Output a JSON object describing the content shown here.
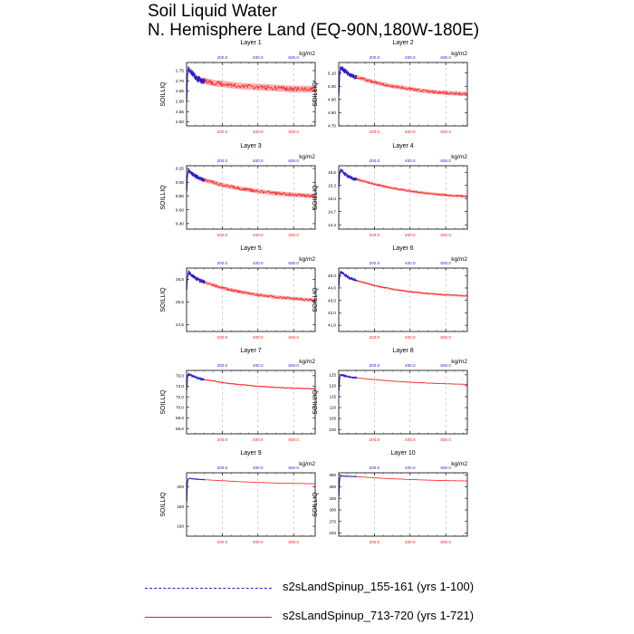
{
  "title": {
    "line1": "Soil Liquid Water",
    "line2": "N. Hemisphere Land (EQ-90N,180W-180E)"
  },
  "colors": {
    "run1": "#1f1fd6",
    "run2": "#ff1a1a",
    "bottom_ticks": "#ff1a1a",
    "top_ticks": "#1f1fd6",
    "grid": "#b4b4b4"
  },
  "legend": [
    {
      "label": "s2sLandSpinup_155-161 (yrs 1-100)",
      "style": "dashed",
      "color": "#1f1fd6"
    },
    {
      "label": "s2sLandSpinup_713-720 (yrs 1-721)",
      "style": "solid",
      "color": "#ff1a1a"
    }
  ],
  "chart_data": [
    {
      "type": "line",
      "title": "Layer 1",
      "ylabel": "SOILLIQ",
      "units": "kg/m2",
      "yticks": [
        "2.50",
        "2.55",
        "2.60",
        "2.65",
        "2.70",
        "2.75"
      ],
      "ylim": [
        2.48,
        2.79
      ],
      "x_top_ticks": [
        "200.0",
        "400.0",
        "600.0"
      ],
      "x_bottom_ticks": [
        "200.0",
        "400.0",
        "600.0"
      ],
      "xlim": [
        0,
        721
      ],
      "series": [
        {
          "name": "s2sLandSpinup_155-161 (yrs 1-100)",
          "x": [
            1,
            5,
            10,
            20,
            30,
            40,
            50,
            60,
            70,
            80,
            90,
            100
          ],
          "y": [
            2.62,
            2.73,
            2.76,
            2.75,
            2.74,
            2.73,
            2.72,
            2.71,
            2.71,
            2.7,
            2.7,
            2.7
          ],
          "noise": 0.015
        },
        {
          "name": "s2sLandSpinup_713-720 (yrs 1-721)",
          "x": [
            1,
            5,
            10,
            20,
            30,
            40,
            50,
            60,
            70,
            80,
            90,
            100,
            150,
            200,
            300,
            400,
            500,
            600,
            721
          ],
          "y": [
            2.62,
            2.73,
            2.76,
            2.75,
            2.74,
            2.73,
            2.72,
            2.71,
            2.71,
            2.7,
            2.7,
            2.7,
            2.69,
            2.685,
            2.675,
            2.67,
            2.665,
            2.66,
            2.66
          ],
          "noise": 0.01
        }
      ]
    },
    {
      "type": "line",
      "title": "Layer 2",
      "ylabel": "SOILLIQ",
      "units": "kg/m2",
      "yticks": [
        "4.70",
        "4.80",
        "4.90",
        "5.00",
        "5.10"
      ],
      "ylim": [
        4.7,
        5.18
      ],
      "x_top_ticks": [
        "200.0",
        "400.0",
        "600.0"
      ],
      "x_bottom_ticks": [
        "200.0",
        "400.0",
        "600.0"
      ],
      "xlim": [
        0,
        721
      ],
      "series": [
        {
          "name": "s2sLandSpinup_155-161 (yrs 1-100)",
          "x": [
            1,
            5,
            10,
            20,
            30,
            40,
            50,
            60,
            70,
            80,
            90,
            100
          ],
          "y": [
            4.95,
            5.09,
            5.14,
            5.13,
            5.12,
            5.11,
            5.1,
            5.09,
            5.08,
            5.08,
            5.07,
            5.07
          ],
          "noise": 0.02
        },
        {
          "name": "s2sLandSpinup_713-720 (yrs 1-721)",
          "x": [
            1,
            5,
            10,
            20,
            30,
            40,
            50,
            60,
            70,
            80,
            90,
            100,
            150,
            200,
            300,
            400,
            500,
            600,
            721
          ],
          "y": [
            4.95,
            5.09,
            5.14,
            5.13,
            5.12,
            5.11,
            5.1,
            5.09,
            5.08,
            5.08,
            5.07,
            5.07,
            5.05,
            5.03,
            5.0,
            4.98,
            4.96,
            4.95,
            4.94
          ],
          "noise": 0.01
        }
      ]
    },
    {
      "type": "line",
      "title": "Layer 3",
      "ylabel": "SOILLIQ",
      "units": "kg/m2",
      "yticks": [
        "8.40",
        "8.60",
        "8.80",
        "9.00",
        "9.20"
      ],
      "ylim": [
        8.32,
        9.24
      ],
      "x_top_ticks": [
        "200.0",
        "400.0",
        "600.0"
      ],
      "x_bottom_ticks": [
        "200.0",
        "400.0",
        "600.0"
      ],
      "xlim": [
        0,
        721
      ],
      "series": [
        {
          "name": "s2sLandSpinup_155-161 (yrs 1-100)",
          "x": [
            1,
            5,
            10,
            20,
            30,
            40,
            50,
            60,
            70,
            80,
            90,
            100
          ],
          "y": [
            8.9,
            9.1,
            9.17,
            9.15,
            9.13,
            9.11,
            9.09,
            9.08,
            9.06,
            9.05,
            9.04,
            9.03
          ],
          "noise": 0.03
        },
        {
          "name": "s2sLandSpinup_713-720 (yrs 1-721)",
          "x": [
            1,
            5,
            10,
            20,
            30,
            40,
            50,
            60,
            70,
            80,
            90,
            100,
            150,
            200,
            300,
            400,
            500,
            600,
            721
          ],
          "y": [
            8.9,
            9.1,
            9.17,
            9.15,
            9.13,
            9.11,
            9.09,
            9.08,
            9.06,
            9.05,
            9.04,
            9.03,
            9.0,
            8.96,
            8.91,
            8.87,
            8.84,
            8.82,
            8.8
          ],
          "noise": 0.02
        }
      ]
    },
    {
      "type": "line",
      "title": "Layer 4",
      "ylabel": "SOILLIQ",
      "units": "kg/m2",
      "yticks": [
        "14.4",
        "14.7",
        "15.0",
        "15.3",
        "15.6"
      ],
      "ylim": [
        14.3,
        15.75
      ],
      "x_top_ticks": [
        "200.0",
        "400.0",
        "600.0"
      ],
      "x_bottom_ticks": [
        "200.0",
        "400.0",
        "600.0"
      ],
      "xlim": [
        0,
        721
      ],
      "series": [
        {
          "name": "s2sLandSpinup_155-161 (yrs 1-100)",
          "x": [
            1,
            5,
            10,
            20,
            30,
            40,
            50,
            60,
            70,
            80,
            90,
            100
          ],
          "y": [
            15.3,
            15.55,
            15.65,
            15.62,
            15.58,
            15.55,
            15.52,
            15.5,
            15.48,
            15.46,
            15.45,
            15.44
          ],
          "noise": 0.04
        },
        {
          "name": "s2sLandSpinup_713-720 (yrs 1-721)",
          "x": [
            1,
            5,
            10,
            20,
            30,
            40,
            50,
            60,
            70,
            80,
            90,
            100,
            150,
            200,
            300,
            400,
            500,
            600,
            721
          ],
          "y": [
            15.3,
            15.55,
            15.65,
            15.62,
            15.58,
            15.55,
            15.52,
            15.5,
            15.48,
            15.46,
            15.45,
            15.44,
            15.39,
            15.33,
            15.24,
            15.17,
            15.12,
            15.08,
            15.05
          ],
          "noise": 0.02
        }
      ]
    },
    {
      "type": "line",
      "title": "Layer 5",
      "ylabel": "SOILLIQ",
      "units": "kg/m2",
      "yticks": [
        "24.5",
        "25.5",
        "26.5"
      ],
      "ylim": [
        24.2,
        27.0
      ],
      "x_top_ticks": [
        "200.0",
        "400.0",
        "600.0"
      ],
      "x_bottom_ticks": [
        "200.0",
        "400.0",
        "600.0"
      ],
      "xlim": [
        0,
        721
      ],
      "series": [
        {
          "name": "s2sLandSpinup_155-161 (yrs 1-100)",
          "x": [
            1,
            5,
            10,
            20,
            30,
            40,
            50,
            60,
            70,
            80,
            90,
            100
          ],
          "y": [
            26.1,
            26.6,
            26.8,
            26.75,
            26.68,
            26.62,
            26.56,
            26.52,
            26.48,
            26.44,
            26.41,
            26.38
          ],
          "noise": 0.08
        },
        {
          "name": "s2sLandSpinup_713-720 (yrs 1-721)",
          "x": [
            1,
            5,
            10,
            20,
            30,
            40,
            50,
            60,
            70,
            80,
            90,
            100,
            150,
            200,
            300,
            400,
            500,
            600,
            721
          ],
          "y": [
            26.1,
            26.6,
            26.8,
            26.75,
            26.68,
            26.62,
            26.56,
            26.52,
            26.48,
            26.44,
            26.41,
            26.38,
            26.25,
            26.12,
            25.95,
            25.82,
            25.72,
            25.65,
            25.58
          ],
          "noise": 0.05
        }
      ]
    },
    {
      "type": "line",
      "title": "Layer 6",
      "ylabel": "SOILLIQ",
      "units": "kg/m2",
      "yticks": [
        "41.0",
        "42.0",
        "43.0",
        "44.0",
        "45.0"
      ],
      "ylim": [
        40.5,
        45.6
      ],
      "x_top_ticks": [
        "200.0",
        "400.0",
        "600.0"
      ],
      "x_bottom_ticks": [
        "200.0",
        "400.0",
        "600.0"
      ],
      "xlim": [
        0,
        721
      ],
      "series": [
        {
          "name": "s2sLandSpinup_155-161 (yrs 1-100)",
          "x": [
            1,
            5,
            10,
            20,
            30,
            40,
            50,
            60,
            70,
            80,
            90,
            100
          ],
          "y": [
            44.2,
            45.0,
            45.3,
            45.2,
            45.1,
            45.0,
            44.9,
            44.8,
            44.75,
            44.7,
            44.65,
            44.6
          ],
          "noise": 0.1
        },
        {
          "name": "s2sLandSpinup_713-720 (yrs 1-721)",
          "x": [
            1,
            5,
            10,
            20,
            30,
            40,
            50,
            60,
            70,
            80,
            90,
            100,
            150,
            200,
            300,
            400,
            500,
            600,
            721
          ],
          "y": [
            44.2,
            45.0,
            45.3,
            45.2,
            45.1,
            45.0,
            44.9,
            44.8,
            44.75,
            44.7,
            44.65,
            44.6,
            44.4,
            44.2,
            43.9,
            43.7,
            43.55,
            43.45,
            43.35
          ],
          "noise": 0.05
        }
      ]
    },
    {
      "type": "line",
      "title": "Layer 7",
      "ylabel": "SOILLIQ",
      "units": "kg/m2",
      "yticks": [
        "66.0",
        "68.0",
        "70.0",
        "72.0",
        "74.0",
        "76.0"
      ],
      "ylim": [
        65.0,
        77.0
      ],
      "x_top_ticks": [
        "200.0",
        "400.0",
        "600.0"
      ],
      "x_bottom_ticks": [
        "200.0",
        "400.0",
        "600.0"
      ],
      "xlim": [
        0,
        721
      ],
      "series": [
        {
          "name": "s2sLandSpinup_155-161 (yrs 1-100)",
          "x": [
            1,
            5,
            10,
            20,
            30,
            40,
            50,
            60,
            70,
            80,
            90,
            100
          ],
          "y": [
            73.5,
            75.6,
            76.3,
            76.2,
            76.0,
            75.85,
            75.7,
            75.6,
            75.5,
            75.4,
            75.3,
            75.25
          ],
          "noise": 0.15
        },
        {
          "name": "s2sLandSpinup_713-720 (yrs 1-721)",
          "x": [
            1,
            5,
            10,
            20,
            30,
            40,
            50,
            60,
            70,
            80,
            90,
            100,
            150,
            200,
            300,
            400,
            500,
            600,
            721
          ],
          "y": [
            73.5,
            75.6,
            76.3,
            76.2,
            76.0,
            75.85,
            75.7,
            75.6,
            75.5,
            75.4,
            75.3,
            75.25,
            75.0,
            74.7,
            74.3,
            74.0,
            73.8,
            73.65,
            73.5
          ],
          "noise": 0.08
        }
      ]
    },
    {
      "type": "line",
      "title": "Layer 8",
      "ylabel": "SOILLIQ",
      "units": "kg/m2",
      "yticks": [
        "100",
        "105",
        "110",
        "115",
        "120",
        "125"
      ],
      "ylim": [
        98,
        127
      ],
      "x_top_ticks": [
        "200.0",
        "400.0",
        "600.0"
      ],
      "x_bottom_ticks": [
        "200.0",
        "400.0",
        "600.0"
      ],
      "xlim": [
        0,
        721
      ],
      "series": [
        {
          "name": "s2sLandSpinup_155-161 (yrs 1-100)",
          "x": [
            1,
            5,
            10,
            20,
            30,
            40,
            50,
            60,
            70,
            80,
            90,
            100
          ],
          "y": [
            118,
            123.5,
            125,
            124.8,
            124.6,
            124.4,
            124.2,
            124.0,
            123.9,
            123.8,
            123.7,
            123.6
          ],
          "noise": 0.3
        },
        {
          "name": "s2sLandSpinup_713-720 (yrs 1-721)",
          "x": [
            1,
            5,
            10,
            20,
            30,
            40,
            50,
            60,
            70,
            80,
            90,
            100,
            150,
            200,
            300,
            400,
            500,
            600,
            721
          ],
          "y": [
            118,
            123.5,
            125,
            124.8,
            124.6,
            124.4,
            124.2,
            124.0,
            123.9,
            123.8,
            123.7,
            123.6,
            123.2,
            122.8,
            122.1,
            121.6,
            121.2,
            120.9,
            120.6
          ],
          "noise": 0.1
        }
      ]
    },
    {
      "type": "line",
      "title": "Layer 9",
      "ylabel": "SOILLIQ",
      "units": "kg/m2",
      "yticks": [
        "160",
        "180",
        "200"
      ],
      "ylim": [
        150,
        214
      ],
      "x_top_ticks": [
        "200.0",
        "400.0",
        "600.0"
      ],
      "x_bottom_ticks": [
        "200.0",
        "400.0",
        "600.0"
      ],
      "xlim": [
        0,
        721
      ],
      "series": [
        {
          "name": "s2sLandSpinup_155-161 (yrs 1-100)",
          "x": [
            1,
            3,
            6,
            10,
            15,
            20,
            30,
            40,
            50,
            60,
            70,
            80,
            90,
            100
          ],
          "y": [
            185,
            200,
            206,
            208,
            208.5,
            208.3,
            208,
            207.8,
            207.6,
            207.4,
            207.3,
            207.2,
            207.1,
            207.0
          ],
          "noise": 0.2
        },
        {
          "name": "s2sLandSpinup_713-720 (yrs 1-721)",
          "x": [
            1,
            3,
            6,
            10,
            15,
            20,
            30,
            40,
            50,
            60,
            70,
            80,
            90,
            100,
            150,
            200,
            300,
            400,
            500,
            600,
            721
          ],
          "y": [
            185,
            200,
            206,
            208,
            208.5,
            208.3,
            208,
            207.8,
            207.6,
            207.4,
            207.3,
            207.2,
            207.1,
            207.0,
            206.5,
            206,
            205,
            204.3,
            203.7,
            203.3,
            202.9
          ],
          "noise": 0
        }
      ]
    },
    {
      "type": "line",
      "title": "Layer 10",
      "ylabel": "SOILLIQ",
      "units": "kg/m2",
      "yticks": [
        "240",
        "270",
        "300",
        "330",
        "360",
        "390"
      ],
      "ylim": [
        232,
        396
      ],
      "x_top_ticks": [
        "200.0",
        "400.0",
        "600.0"
      ],
      "x_bottom_ticks": [
        "200.0",
        "400.0",
        "600.0"
      ],
      "xlim": [
        0,
        721
      ],
      "series": [
        {
          "name": "s2sLandSpinup_155-161 (yrs 1-100)",
          "x": [
            1,
            3,
            6,
            10,
            15,
            20,
            30,
            40,
            50,
            60,
            70,
            80,
            90,
            100
          ],
          "y": [
            335,
            370,
            382,
            387,
            388,
            387.8,
            387.5,
            387.2,
            387.0,
            386.8,
            386.6,
            386.4,
            386.2,
            386.0
          ],
          "noise": 0.3
        },
        {
          "name": "s2sLandSpinup_713-720 (yrs 1-721)",
          "x": [
            1,
            3,
            6,
            10,
            15,
            20,
            30,
            40,
            50,
            60,
            70,
            80,
            90,
            100,
            150,
            200,
            300,
            400,
            500,
            600,
            721
          ],
          "y": [
            335,
            370,
            382,
            387,
            388,
            387.8,
            387.5,
            387.2,
            387.0,
            386.8,
            386.6,
            386.4,
            386.2,
            386.0,
            384.5,
            383,
            380.5,
            378.5,
            377,
            375.8,
            374.8
          ],
          "noise": 0
        }
      ]
    }
  ]
}
